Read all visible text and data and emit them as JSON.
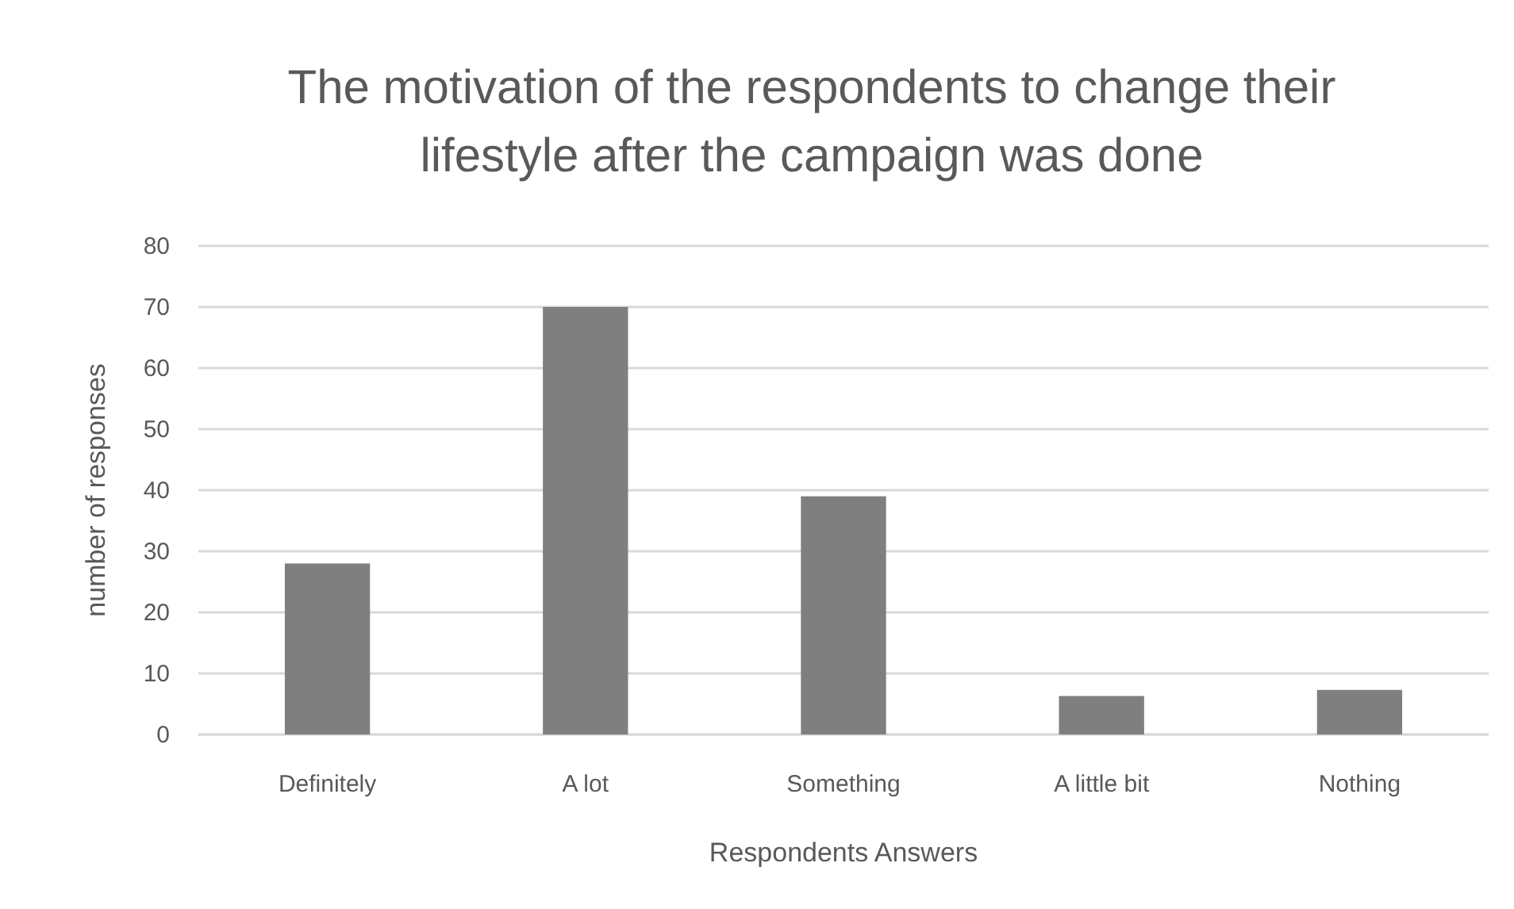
{
  "chart_data": {
    "type": "bar",
    "title": "The motivation of the respondents to change their lifestyle after the campaign was done",
    "xlabel": "Respondents Answers",
    "ylabel": "number  of responses",
    "categories": [
      "Definitely",
      "A lot",
      "Something",
      "A little bit",
      "Nothing"
    ],
    "values": [
      28,
      70,
      39,
      6.3,
      7.3
    ],
    "color": "#7f7f7f",
    "ylim": [
      0,
      80
    ],
    "yticks": [
      0,
      10,
      20,
      30,
      40,
      50,
      60,
      70,
      80
    ],
    "grid": "y"
  }
}
